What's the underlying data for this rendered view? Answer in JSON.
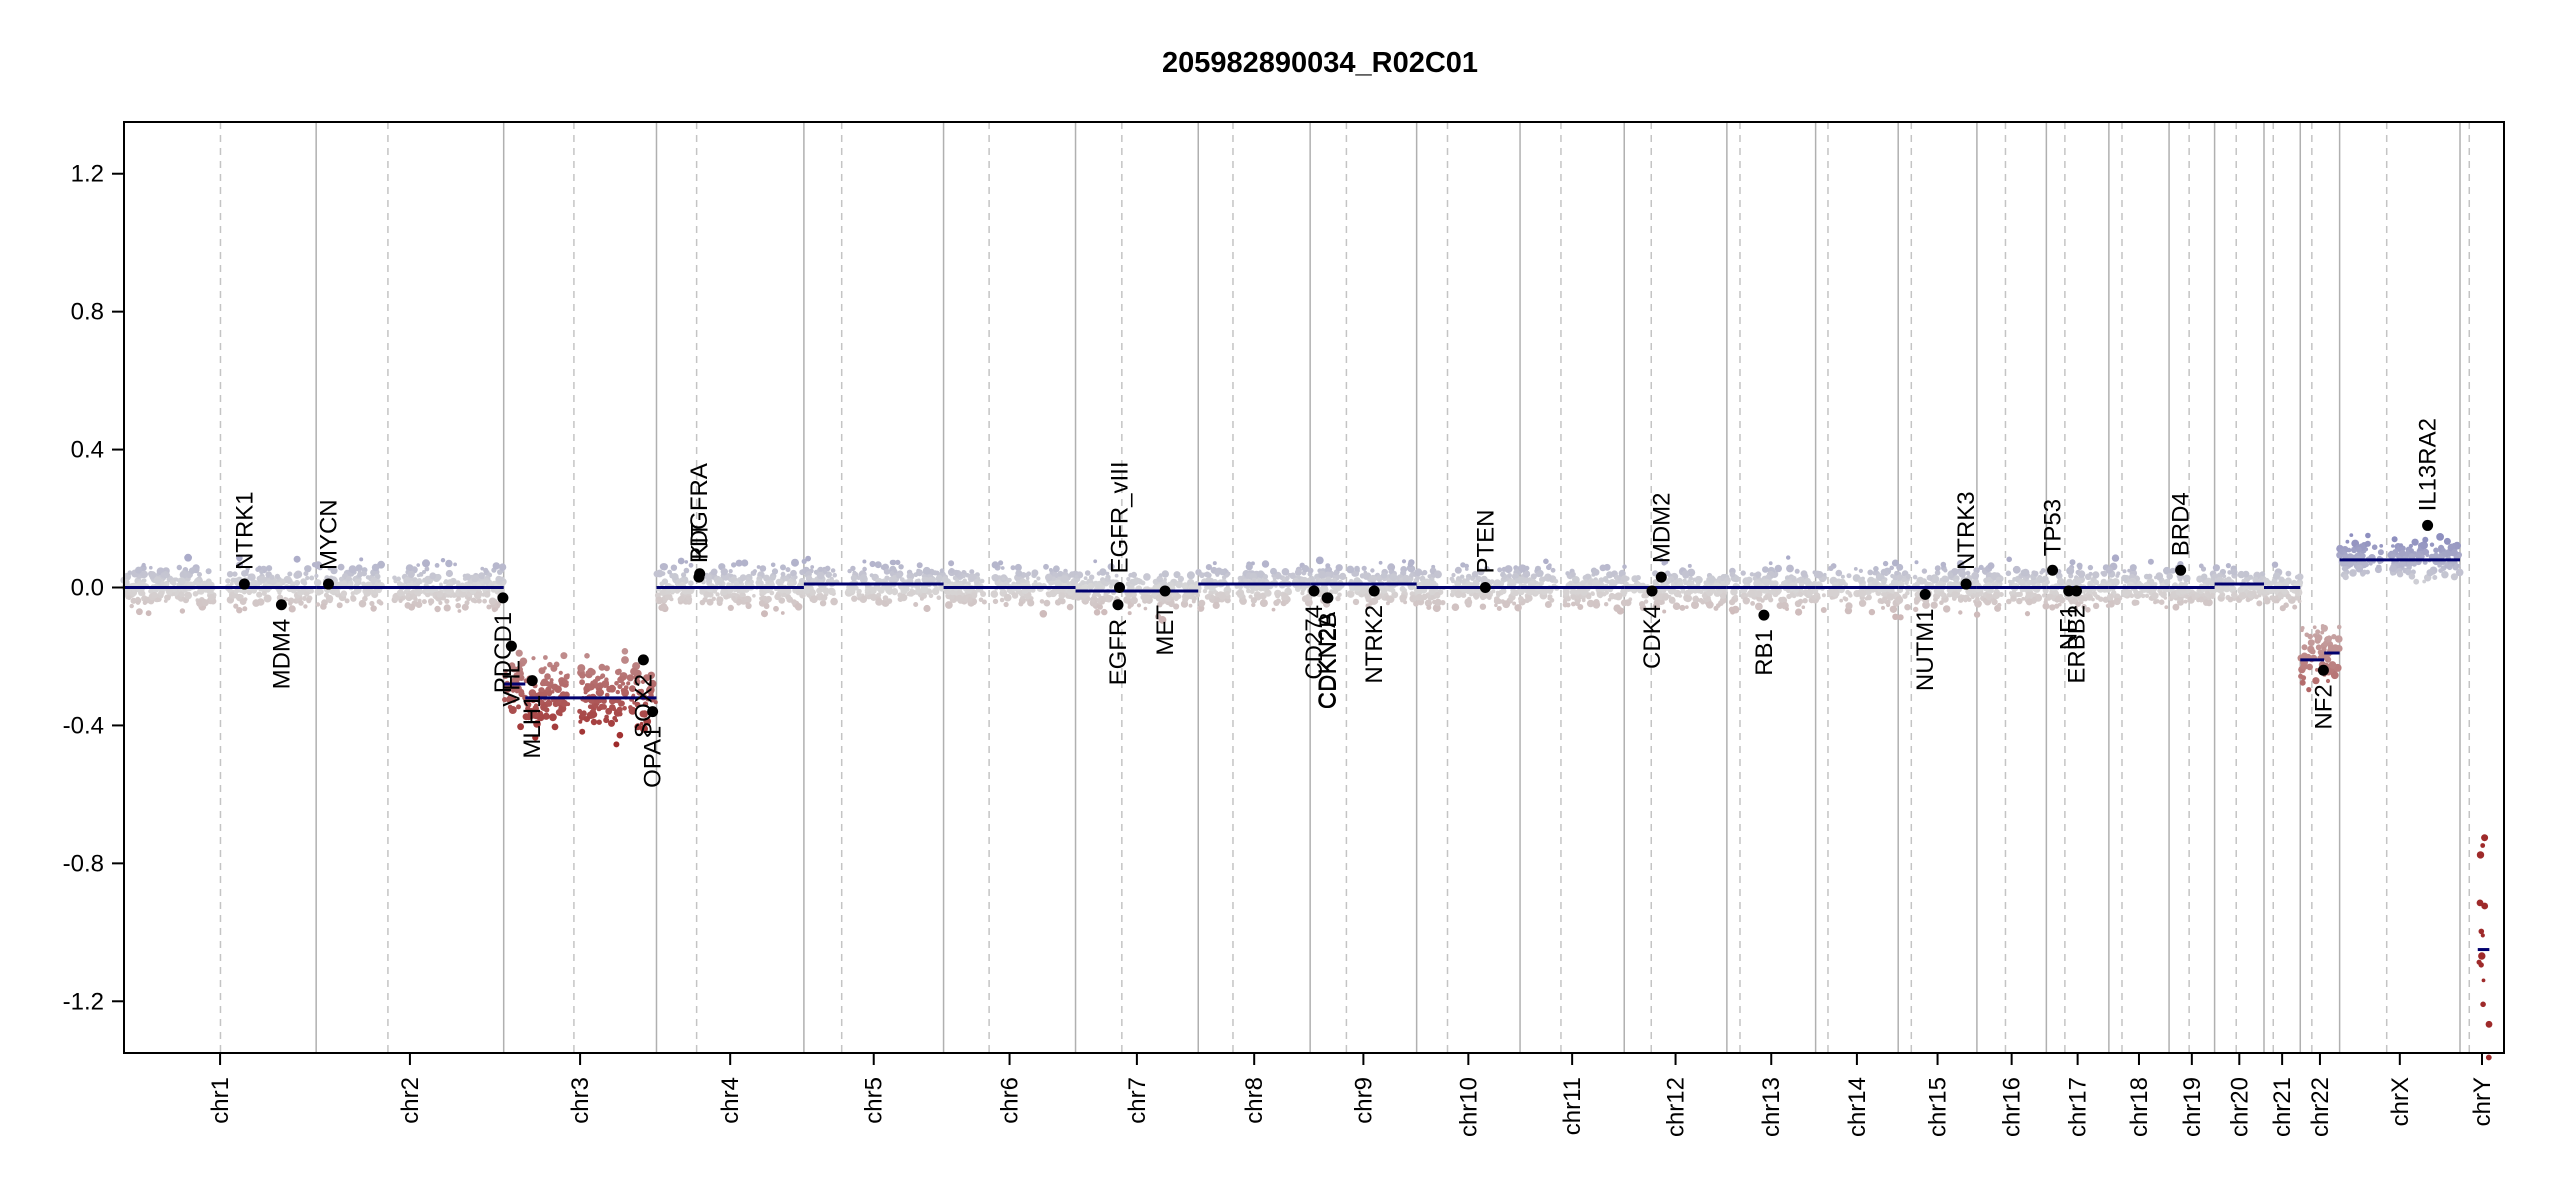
{
  "chart_data": {
    "type": "scatter",
    "title": "205982890034_R02C01",
    "xlabel": "",
    "ylabel": "",
    "ylim": [
      -1.35,
      1.35
    ],
    "yticks": [
      "1.2",
      "0.8",
      "0.4",
      "0.0",
      "-0.4",
      "-0.8",
      "-1.2"
    ],
    "ytick_values": [
      1.2,
      0.8,
      0.4,
      0.0,
      -0.4,
      -0.8,
      -1.2
    ],
    "grid": "chromosome boundaries (solid) and centromeres (dashed)",
    "colors": {
      "gain": "#8e8fbf",
      "neutral": "#d8d8d8",
      "loss": "#9e2a2a",
      "segment": "#00006e",
      "gene": "#000000",
      "boundary": "#b0b0b0"
    },
    "chromosomes": [
      {
        "name": "chr1",
        "start": 0,
        "end": 249,
        "centromere": 125
      },
      {
        "name": "chr2",
        "start": 249,
        "end": 492,
        "centromere": 342
      },
      {
        "name": "chr3",
        "start": 492,
        "end": 690,
        "centromere": 583
      },
      {
        "name": "chr4",
        "start": 690,
        "end": 881,
        "centromere": 742
      },
      {
        "name": "chr5",
        "start": 881,
        "end": 1062,
        "centromere": 930
      },
      {
        "name": "chr6",
        "start": 1062,
        "end": 1233,
        "centromere": 1121
      },
      {
        "name": "chr7",
        "start": 1233,
        "end": 1392,
        "centromere": 1293
      },
      {
        "name": "chr8",
        "start": 1392,
        "end": 1537,
        "centromere": 1437
      },
      {
        "name": "chr9",
        "start": 1537,
        "end": 1675,
        "centromere": 1584
      },
      {
        "name": "chr10",
        "start": 1675,
        "end": 1809,
        "centromere": 1715
      },
      {
        "name": "chr11",
        "start": 1809,
        "end": 1944,
        "centromere": 1862
      },
      {
        "name": "chr12",
        "start": 1944,
        "end": 2077,
        "centromere": 1979
      },
      {
        "name": "chr13",
        "start": 2077,
        "end": 2192,
        "centromere": 2094
      },
      {
        "name": "chr14",
        "start": 2192,
        "end": 2299,
        "centromere": 2208
      },
      {
        "name": "chr15",
        "start": 2299,
        "end": 2401,
        "centromere": 2316
      },
      {
        "name": "chr16",
        "start": 2401,
        "end": 2491,
        "centromere": 2438
      },
      {
        "name": "chr17",
        "start": 2491,
        "end": 2572,
        "centromere": 2515
      },
      {
        "name": "chr18",
        "start": 2572,
        "end": 2650,
        "centromere": 2589
      },
      {
        "name": "chr19",
        "start": 2650,
        "end": 2709,
        "centromere": 2676
      },
      {
        "name": "chr20",
        "start": 2709,
        "end": 2773,
        "centromere": 2737
      },
      {
        "name": "chr21",
        "start": 2773,
        "end": 2820,
        "centromere": 2785
      },
      {
        "name": "chr22",
        "start": 2820,
        "end": 2871,
        "centromere": 2835
      },
      {
        "name": "chrX",
        "start": 2871,
        "end": 3027,
        "centromere": 2932
      },
      {
        "name": "chrY",
        "start": 3027,
        "end": 3084,
        "centromere": 3039
      }
    ],
    "segments": [
      {
        "chr": "chr1",
        "x0": 0,
        "x1": 249,
        "y": 0.0
      },
      {
        "chr": "chr2",
        "x0": 249,
        "x1": 492,
        "y": 0.0
      },
      {
        "chr": "chr3",
        "x0": 492,
        "x1": 520,
        "y": -0.28
      },
      {
        "chr": "chr3",
        "x0": 520,
        "x1": 690,
        "y": -0.32
      },
      {
        "chr": "chr4",
        "x0": 690,
        "x1": 881,
        "y": 0.0
      },
      {
        "chr": "chr5",
        "x0": 881,
        "x1": 1062,
        "y": 0.01
      },
      {
        "chr": "chr6",
        "x0": 1062,
        "x1": 1233,
        "y": 0.0
      },
      {
        "chr": "chr7",
        "x0": 1233,
        "x1": 1392,
        "y": -0.01
      },
      {
        "chr": "chr8",
        "x0": 1392,
        "x1": 1537,
        "y": 0.01
      },
      {
        "chr": "chr9",
        "x0": 1537,
        "x1": 1675,
        "y": 0.01
      },
      {
        "chr": "chr10",
        "x0": 1675,
        "x1": 1809,
        "y": 0.0
      },
      {
        "chr": "chr11",
        "x0": 1809,
        "x1": 1944,
        "y": 0.0
      },
      {
        "chr": "chr12",
        "x0": 1944,
        "x1": 2077,
        "y": 0.0
      },
      {
        "chr": "chr13",
        "x0": 2077,
        "x1": 2192,
        "y": 0.0
      },
      {
        "chr": "chr14",
        "x0": 2192,
        "x1": 2299,
        "y": 0.0
      },
      {
        "chr": "chr15",
        "x0": 2299,
        "x1": 2401,
        "y": 0.0
      },
      {
        "chr": "chr16",
        "x0": 2401,
        "x1": 2491,
        "y": 0.0
      },
      {
        "chr": "chr17",
        "x0": 2491,
        "x1": 2572,
        "y": 0.0
      },
      {
        "chr": "chr18",
        "x0": 2572,
        "x1": 2650,
        "y": 0.0
      },
      {
        "chr": "chr19",
        "x0": 2650,
        "x1": 2709,
        "y": 0.0
      },
      {
        "chr": "chr20",
        "x0": 2709,
        "x1": 2773,
        "y": 0.01
      },
      {
        "chr": "chr21",
        "x0": 2773,
        "x1": 2820,
        "y": 0.0
      },
      {
        "chr": "chr22",
        "x0": 2820,
        "x1": 2851,
        "y": -0.21
      },
      {
        "chr": "chr22",
        "x0": 2851,
        "x1": 2871,
        "y": -0.19
      },
      {
        "chr": "chrX",
        "x0": 2871,
        "x1": 3027,
        "y": 0.08
      },
      {
        "chr": "chrY",
        "x0": 3050,
        "x1": 3065,
        "y": -1.05
      }
    ],
    "genes": [
      {
        "name": "NTRK1",
        "x": 156,
        "y": 0.01,
        "label_side": "above"
      },
      {
        "name": "MDM4",
        "x": 204,
        "y": -0.05,
        "label_side": "below"
      },
      {
        "name": "MYCN",
        "x": 265,
        "y": 0.01,
        "label_side": "above"
      },
      {
        "name": "PDCD1",
        "x": 491,
        "y": -0.03,
        "label_side": "below"
      },
      {
        "name": "VHL",
        "x": 502,
        "y": -0.17,
        "label_side": "below"
      },
      {
        "name": "MLH1",
        "x": 529,
        "y": -0.27,
        "label_side": "below"
      },
      {
        "name": "SOX2",
        "x": 673,
        "y": -0.21,
        "label_side": "below"
      },
      {
        "name": "OPA1",
        "x": 685,
        "y": -0.36,
        "label_side": "below"
      },
      {
        "name": "PDGFRA",
        "x": 745,
        "y": 0.03,
        "label_side": "above"
      },
      {
        "name": "KIT",
        "x": 746,
        "y": 0.04,
        "label_side": "above"
      },
      {
        "name": "EGFR",
        "x": 1288,
        "y": -0.05,
        "label_side": "below"
      },
      {
        "name": "EGFR_vIII",
        "x": 1290,
        "y": 0.0,
        "label_side": "above"
      },
      {
        "name": "MET",
        "x": 1349,
        "y": -0.01,
        "label_side": "below"
      },
      {
        "name": "CD274",
        "x": 1542,
        "y": -0.01,
        "label_side": "below"
      },
      {
        "name": "CDKN2A",
        "x": 1559,
        "y": -0.03,
        "label_side": "below"
      },
      {
        "name": "CDKN2B",
        "x": 1560,
        "y": -0.03,
        "label_side": "below"
      },
      {
        "name": "NTRK2",
        "x": 1620,
        "y": -0.01,
        "label_side": "below"
      },
      {
        "name": "PTEN",
        "x": 1764,
        "y": 0.0,
        "label_side": "above"
      },
      {
        "name": "CDK4",
        "x": 1980,
        "y": -0.01,
        "label_side": "below"
      },
      {
        "name": "MDM2",
        "x": 1992,
        "y": 0.03,
        "label_side": "above"
      },
      {
        "name": "RB1",
        "x": 2125,
        "y": -0.08,
        "label_side": "below"
      },
      {
        "name": "NUTM1",
        "x": 2334,
        "y": -0.02,
        "label_side": "below"
      },
      {
        "name": "NTRK3",
        "x": 2387,
        "y": 0.01,
        "label_side": "above"
      },
      {
        "name": "TP53",
        "x": 2499,
        "y": 0.05,
        "label_side": "above"
      },
      {
        "name": "NF1",
        "x": 2520,
        "y": -0.01,
        "label_side": "below"
      },
      {
        "name": "ERBB2",
        "x": 2530,
        "y": -0.01,
        "label_side": "below"
      },
      {
        "name": "BRD4",
        "x": 2665,
        "y": 0.05,
        "label_side": "above"
      },
      {
        "name": "NF2",
        "x": 2850,
        "y": -0.24,
        "label_side": "below"
      },
      {
        "name": "IL13RA2",
        "x": 2985,
        "y": 0.18,
        "label_side": "above"
      }
    ]
  }
}
